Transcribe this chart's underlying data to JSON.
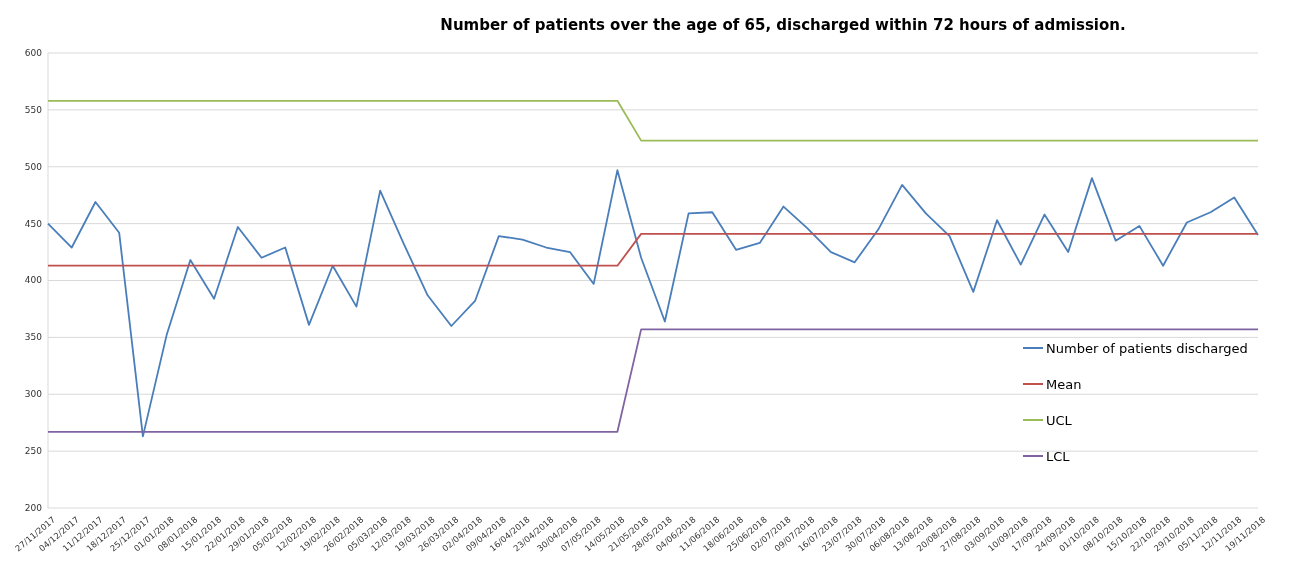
{
  "chart_data": {
    "type": "line",
    "title": "Number of patients over the age of 65, discharged within 72 hours of admission.",
    "categories": [
      "27/11/2017",
      "04/12/2017",
      "11/12/2017",
      "18/12/2017",
      "25/12/2017",
      "01/01/2018",
      "08/01/2018",
      "15/01/2018",
      "22/01/2018",
      "29/01/2018",
      "05/02/2018",
      "12/02/2018",
      "19/02/2018",
      "26/02/2018",
      "05/03/2018",
      "12/03/2018",
      "19/03/2018",
      "26/03/2018",
      "02/04/2018",
      "09/04/2018",
      "16/04/2018",
      "23/04/2018",
      "30/04/2018",
      "07/05/2018",
      "14/05/2018",
      "21/05/2018",
      "28/05/2018",
      "04/06/2018",
      "11/06/2018",
      "18/06/2018",
      "25/06/2018",
      "02/07/2018",
      "09/07/2018",
      "16/07/2018",
      "23/07/2018",
      "30/07/2018",
      "06/08/2018",
      "13/08/2018",
      "20/08/2018",
      "27/08/2018",
      "03/09/2018",
      "10/09/2018",
      "17/09/2018",
      "24/09/2018",
      "01/10/2018",
      "08/10/2018",
      "15/10/2018",
      "22/10/2018",
      "29/10/2018",
      "05/11/2018",
      "12/11/2018",
      "19/11/2018"
    ],
    "series": [
      {
        "name": "Number of patients discharged",
        "color": "#4a7ebb",
        "values": [
          450,
          429,
          469,
          442,
          263,
          352,
          418,
          384,
          447,
          420,
          429,
          361,
          413,
          377,
          479,
          432,
          387,
          360,
          382,
          439,
          436,
          429,
          425,
          397,
          497,
          420,
          364,
          459,
          460,
          427,
          433,
          465,
          446,
          425,
          416,
          445,
          484,
          459,
          439,
          390,
          453,
          414,
          458,
          425,
          490,
          435,
          448,
          413,
          451,
          460,
          473,
          440
        ]
      },
      {
        "name": "Mean",
        "color": "#c0504d",
        "values": [
          413,
          413,
          413,
          413,
          413,
          413,
          413,
          413,
          413,
          413,
          413,
          413,
          413,
          413,
          413,
          413,
          413,
          413,
          413,
          413,
          413,
          413,
          413,
          413,
          413,
          441,
          441,
          441,
          441,
          441,
          441,
          441,
          441,
          441,
          441,
          441,
          441,
          441,
          441,
          441,
          441,
          441,
          441,
          441,
          441,
          441,
          441,
          441,
          441,
          441,
          441,
          441
        ]
      },
      {
        "name": "UCL",
        "color": "#9bbb59",
        "values": [
          558,
          558,
          558,
          558,
          558,
          558,
          558,
          558,
          558,
          558,
          558,
          558,
          558,
          558,
          558,
          558,
          558,
          558,
          558,
          558,
          558,
          558,
          558,
          558,
          558,
          523,
          523,
          523,
          523,
          523,
          523,
          523,
          523,
          523,
          523,
          523,
          523,
          523,
          523,
          523,
          523,
          523,
          523,
          523,
          523,
          523,
          523,
          523,
          523,
          523,
          523,
          523
        ]
      },
      {
        "name": "LCL",
        "color": "#8064a2",
        "values": [
          267,
          267,
          267,
          267,
          267,
          267,
          267,
          267,
          267,
          267,
          267,
          267,
          267,
          267,
          267,
          267,
          267,
          267,
          267,
          267,
          267,
          267,
          267,
          267,
          267,
          357,
          357,
          357,
          357,
          357,
          357,
          357,
          357,
          357,
          357,
          357,
          357,
          357,
          357,
          357,
          357,
          357,
          357,
          357,
          357,
          357,
          357,
          357,
          357,
          357,
          357,
          357
        ]
      }
    ],
    "ylim": [
      200,
      600
    ],
    "yticks": [
      200,
      250,
      300,
      350,
      400,
      450,
      500,
      550,
      600
    ],
    "grid": "y",
    "legend": "right",
    "marker": "none",
    "line_style": "solid"
  }
}
